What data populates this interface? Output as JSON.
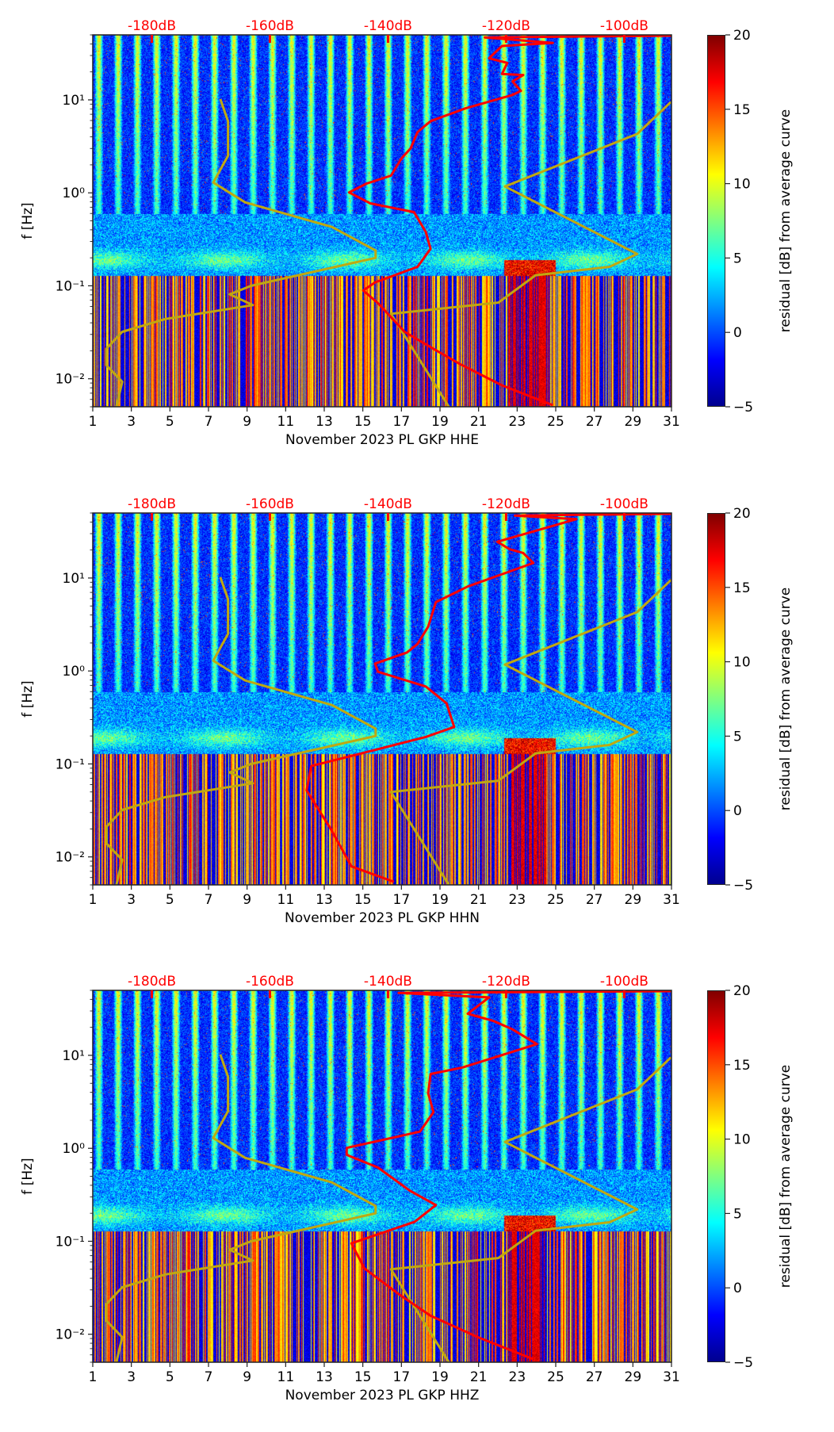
{
  "figure": {
    "colorbar": {
      "label": "residual [dB] from average curve",
      "ticks": [
        "20",
        "15",
        "10",
        "5",
        "0",
        "−5"
      ],
      "tick_values": [
        20,
        15,
        10,
        5,
        0,
        -5
      ],
      "range": [
        -5,
        20
      ],
      "colormap": "jet"
    },
    "curve_colors": {
      "mean_psd": "#ff0000",
      "noise_models": "#c0a810",
      "top_axis": "#ff0000"
    }
  },
  "chart_data": [
    {
      "type": "heatmap",
      "title": "",
      "xlabel": "November 2023 PL GKP  HHE",
      "ylabel": "f [Hz]",
      "x_ticks": [
        "1",
        "3",
        "5",
        "7",
        "9",
        "11",
        "13",
        "15",
        "17",
        "19",
        "21",
        "23",
        "25",
        "27",
        "29",
        "31"
      ],
      "x_tick_values": [
        1,
        3,
        5,
        7,
        9,
        11,
        13,
        15,
        17,
        19,
        21,
        23,
        25,
        27,
        29,
        31
      ],
      "xlim": [
        1,
        31
      ],
      "y_scale": "log",
      "ylim": [
        0.005,
        50
      ],
      "y_ticks": [
        "10¹",
        "10⁰",
        "10⁻¹",
        "10⁻²"
      ],
      "y_tick_values": [
        10,
        1,
        0.1,
        0.01
      ],
      "top_axis": {
        "labels": [
          "-180dB",
          "-160dB",
          "-140dB",
          "-120dB",
          "-100dB"
        ],
        "values": [
          -180,
          -160,
          -140,
          -120,
          -100
        ],
        "range": [
          -190,
          -92
        ]
      },
      "series": [
        {
          "name": "mean PSD (dB vs f)",
          "color": "red",
          "points": [
            [
              -92,
              49
            ],
            [
              -123.6,
              47
            ],
            [
              -112.1,
              41
            ],
            [
              -120.7,
              38
            ],
            [
              -122.9,
              28
            ],
            [
              -119.8,
              25
            ],
            [
              -120.7,
              19
            ],
            [
              -117.1,
              18.5
            ],
            [
              -118.9,
              15.8
            ],
            [
              -117.5,
              12.5
            ],
            [
              -118.9,
              11.3
            ],
            [
              -126.9,
              8.1
            ],
            [
              -132.8,
              5.9
            ],
            [
              -135.0,
              4.5
            ],
            [
              -136.2,
              3.0
            ],
            [
              -137.7,
              2.36
            ],
            [
              -139.5,
              1.53
            ],
            [
              -143.6,
              1.26
            ],
            [
              -146.6,
              1.01
            ],
            [
              -143.0,
              0.77
            ],
            [
              -135.6,
              0.62
            ],
            [
              -133.6,
              0.38
            ],
            [
              -132.8,
              0.25
            ],
            [
              -135.0,
              0.16
            ],
            [
              -142.2,
              0.109
            ],
            [
              -144.2,
              0.089
            ],
            [
              -141.7,
              0.065
            ],
            [
              -137.2,
              0.032
            ],
            [
              -132.3,
              0.021
            ],
            [
              -127.9,
              0.0145
            ],
            [
              -120.7,
              0.0085
            ],
            [
              -112.1,
              0.0052
            ]
          ]
        },
        {
          "name": "NLNM",
          "color": "olive"
        },
        {
          "name": "NHNM",
          "color": "olive"
        }
      ]
    },
    {
      "type": "heatmap",
      "title": "",
      "xlabel": "November 2023 PL GKP  HHN",
      "ylabel": "f [Hz]",
      "x_ticks": [
        "1",
        "3",
        "5",
        "7",
        "9",
        "11",
        "13",
        "15",
        "17",
        "19",
        "21",
        "23",
        "25",
        "27",
        "29",
        "31"
      ],
      "x_tick_values": [
        1,
        3,
        5,
        7,
        9,
        11,
        13,
        15,
        17,
        19,
        21,
        23,
        25,
        27,
        29,
        31
      ],
      "xlim": [
        1,
        31
      ],
      "y_scale": "log",
      "ylim": [
        0.005,
        50
      ],
      "y_ticks": [
        "10¹",
        "10⁰",
        "10⁻¹",
        "10⁻²"
      ],
      "y_tick_values": [
        10,
        1,
        0.1,
        0.01
      ],
      "top_axis": {
        "labels": [
          "-180dB",
          "-160dB",
          "-140dB",
          "-120dB",
          "-100dB"
        ],
        "values": [
          -180,
          -160,
          -140,
          -120,
          -100
        ],
        "range": [
          -190,
          -92
        ]
      },
      "series": [
        {
          "name": "mean PSD (dB vs f)",
          "color": "red",
          "points": [
            [
              -92,
              49
            ],
            [
              -118.5,
              47
            ],
            [
              -108.1,
              43
            ],
            [
              -121.5,
              24.5
            ],
            [
              -119.4,
              20.4
            ],
            [
              -117.1,
              18.6
            ],
            [
              -115.4,
              14.5
            ],
            [
              -126.5,
              8.1
            ],
            [
              -131.9,
              5.5
            ],
            [
              -133.2,
              3.0
            ],
            [
              -135.0,
              1.95
            ],
            [
              -136.8,
              1.58
            ],
            [
              -142.2,
              1.2
            ],
            [
              -141.7,
              0.98
            ],
            [
              -133.6,
              0.68
            ],
            [
              -130.1,
              0.45
            ],
            [
              -128.8,
              0.25
            ],
            [
              -133.6,
              0.195
            ],
            [
              -145.3,
              0.126
            ],
            [
              -153.0,
              0.095
            ],
            [
              -153.8,
              0.052
            ],
            [
              -149.7,
              0.02
            ],
            [
              -146.2,
              0.0079
            ],
            [
              -139.0,
              0.0054
            ]
          ]
        },
        {
          "name": "NLNM",
          "color": "olive"
        },
        {
          "name": "NHNM",
          "color": "olive"
        }
      ]
    },
    {
      "type": "heatmap",
      "title": "",
      "xlabel": "November 2023 PL GKP  HHZ",
      "ylabel": "f [Hz]",
      "x_ticks": [
        "1",
        "3",
        "5",
        "7",
        "9",
        "11",
        "13",
        "15",
        "17",
        "19",
        "21",
        "23",
        "25",
        "27",
        "29",
        "31"
      ],
      "x_tick_values": [
        1,
        3,
        5,
        7,
        9,
        11,
        13,
        15,
        17,
        19,
        21,
        23,
        25,
        27,
        29,
        31
      ],
      "xlim": [
        1,
        31
      ],
      "y_scale": "log",
      "ylim": [
        0.005,
        50
      ],
      "y_ticks": [
        "10¹",
        "10⁰",
        "10⁻¹",
        "10⁻²"
      ],
      "y_tick_values": [
        10,
        1,
        0.1,
        0.01
      ],
      "top_axis": {
        "labels": [
          "-180dB",
          "-160dB",
          "-140dB",
          "-120dB",
          "-100dB"
        ],
        "values": [
          -180,
          -160,
          -140,
          -120,
          -100
        ],
        "range": [
          -190,
          -92
        ]
      },
      "series": [
        {
          "name": "mean PSD (dB vs f)",
          "color": "red",
          "points": [
            [
              -92,
              49
            ],
            [
              -138.2,
              47
            ],
            [
              -122.9,
              42
            ],
            [
              -126.5,
              28
            ],
            [
              -122.1,
              23.4
            ],
            [
              -118.9,
              19
            ],
            [
              -114.8,
              13.2
            ],
            [
              -127.4,
              7.4
            ],
            [
              -132.8,
              6.3
            ],
            [
              -133.2,
              3.9
            ],
            [
              -132.3,
              2.45
            ],
            [
              -134.6,
              1.51
            ],
            [
              -147.0,
              1.01
            ],
            [
              -147.0,
              0.85
            ],
            [
              -141.7,
              0.62
            ],
            [
              -136.3,
              0.35
            ],
            [
              -131.9,
              0.245
            ],
            [
              -135.5,
              0.162
            ],
            [
              -146.2,
              0.095
            ],
            [
              -144.0,
              0.051
            ],
            [
              -138.2,
              0.027
            ],
            [
              -132.8,
              0.0158
            ],
            [
              -124.8,
              0.0093
            ],
            [
              -115.4,
              0.0054
            ]
          ]
        },
        {
          "name": "NLNM",
          "color": "olive"
        },
        {
          "name": "NHNM",
          "color": "olive"
        }
      ]
    }
  ],
  "noise_models": {
    "NLNM": [
      [
        -168.4,
        10.2
      ],
      [
        -167.1,
        5.9
      ],
      [
        -167.1,
        2.5
      ],
      [
        -169.6,
        1.29
      ],
      [
        -164.2,
        0.79
      ],
      [
        -149.5,
        0.43
      ],
      [
        -142.1,
        0.24
      ],
      [
        -142.1,
        0.2
      ],
      [
        -163.2,
        0.1
      ],
      [
        -166.8,
        0.081
      ],
      [
        -162.9,
        0.062
      ],
      [
        -177.7,
        0.044
      ],
      [
        -185.0,
        0.032
      ],
      [
        -187.7,
        0.021
      ],
      [
        -187.7,
        0.014
      ],
      [
        -185.0,
        0.0093
      ],
      [
        -186.0,
        0.005
      ]
    ],
    "NHNM": [
      [
        -92.1,
        9.5
      ],
      [
        -97.8,
        4.3
      ],
      [
        -120.2,
        1.17
      ],
      [
        -97.8,
        0.22
      ],
      [
        -102.5,
        0.16
      ],
      [
        -115.0,
        0.13
      ],
      [
        -121.3,
        0.066
      ],
      [
        -139.5,
        0.05
      ],
      [
        -129.7,
        0.005
      ]
    ]
  }
}
